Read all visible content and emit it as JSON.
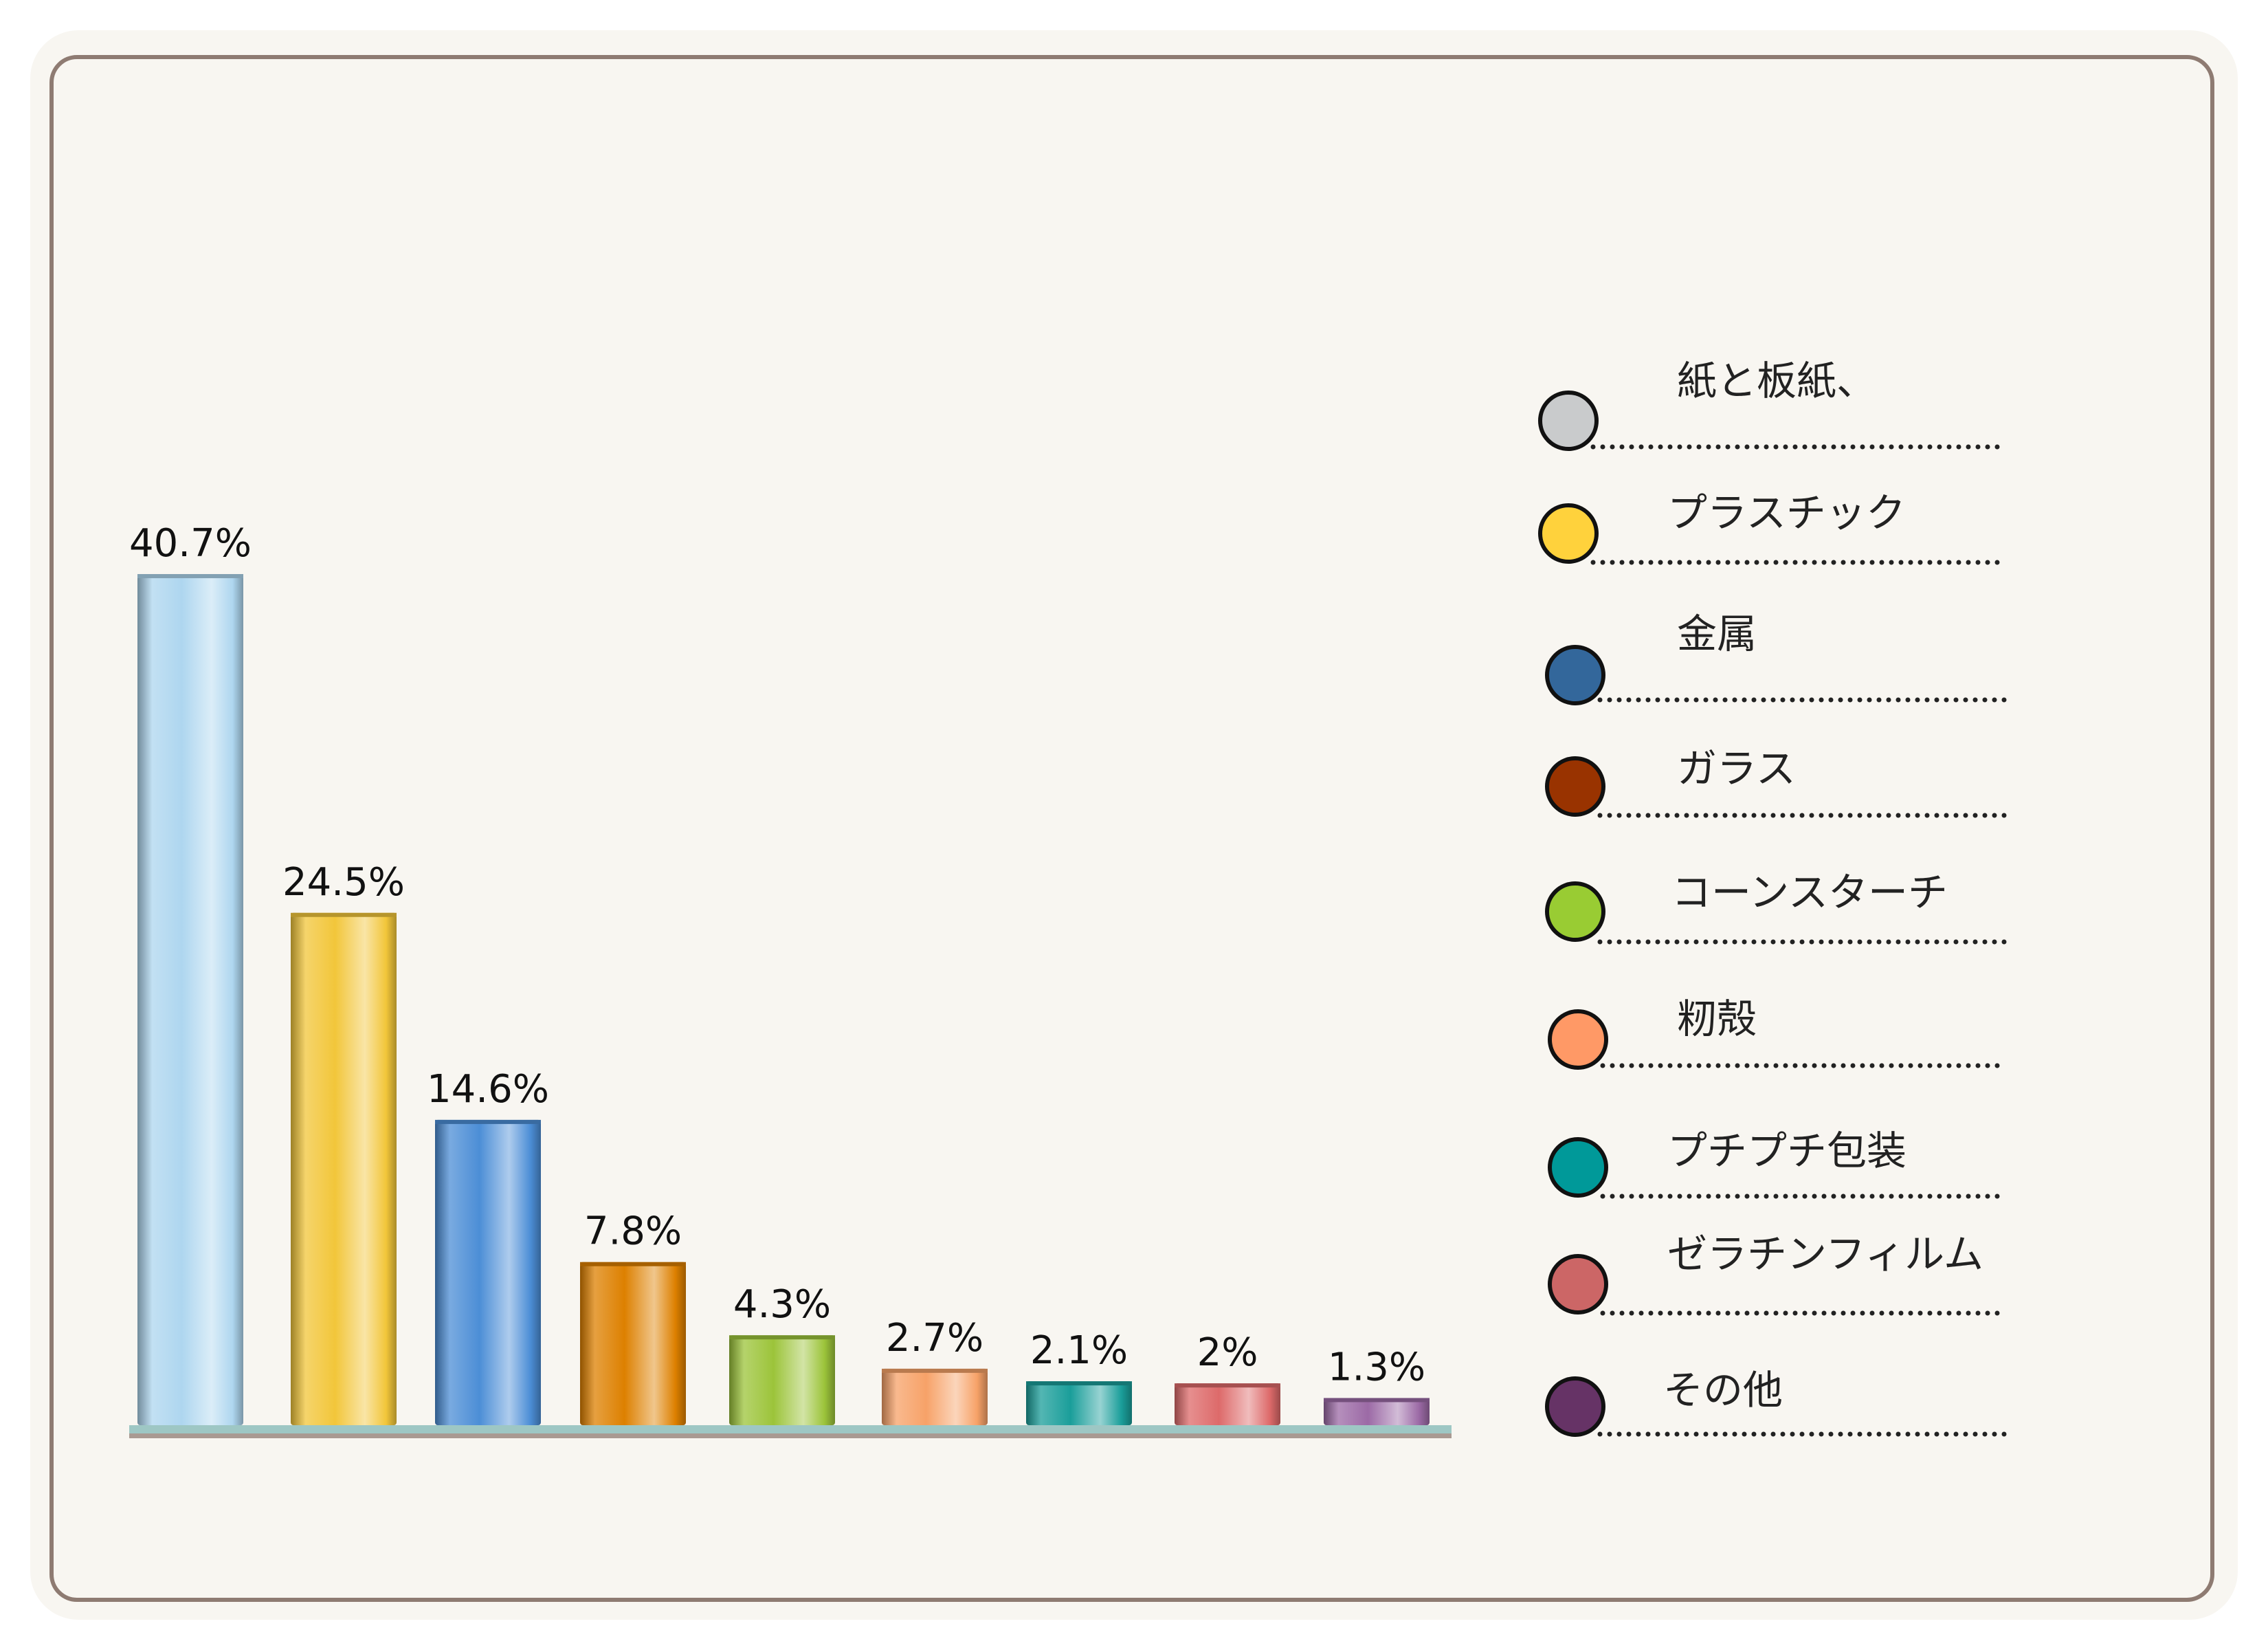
{
  "chart_data": {
    "type": "bar",
    "categories": [
      "紙と板紙、",
      "プラスチック",
      "金属",
      "ガラス",
      "コーンスターチ",
      "籾殻",
      "プチプチ包装",
      "ゼラチンフィルム",
      "その他"
    ],
    "values": [
      40.7,
      24.5,
      14.6,
      7.8,
      4.3,
      2.7,
      2.1,
      2,
      1.3
    ],
    "value_labels": [
      "40.7%",
      "24.5%",
      "14.6%",
      "7.8%",
      "4.3%",
      "2.7%",
      "2.1%",
      "2%",
      "1.3%"
    ],
    "colors": [
      "#c9cbcc",
      "#ffd23c",
      "#33679b",
      "#993300",
      "#99cc33",
      "#ff9966",
      "#009999",
      "#cc6666",
      "#663366"
    ],
    "bar_colors": [
      "#aed6ef",
      "#f2c63a",
      "#4c8ed6",
      "#dd8000",
      "#9cc43a",
      "#f7a268",
      "#1a9e9a",
      "#dd6a6a",
      "#9c6aa6"
    ],
    "legend_position": "right",
    "grid": false,
    "title": "",
    "xlabel": "",
    "ylabel": "",
    "ylim": [
      0,
      40.7
    ]
  }
}
